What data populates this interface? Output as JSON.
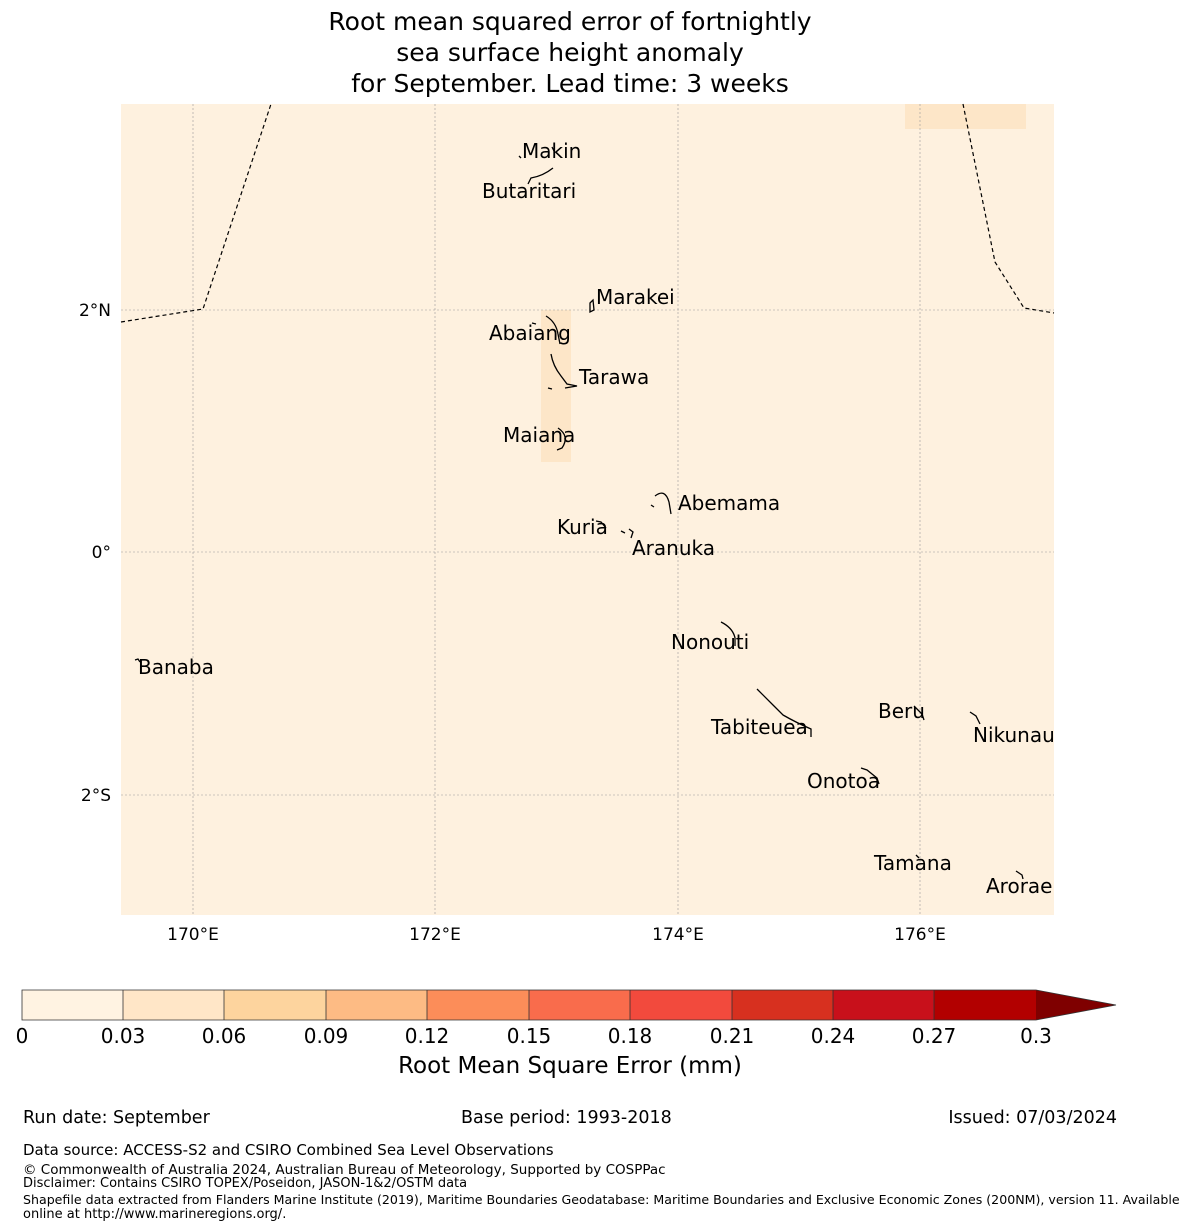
{
  "title": {
    "line1": "Root mean squared error of fortnightly",
    "line2": "sea surface height anomaly",
    "line3": "for September. Lead time: 3 weeks"
  },
  "map": {
    "lon_range": [
      169.4,
      177.1
    ],
    "lat_range": [
      -3.0,
      3.7
    ],
    "x_ticks": [
      "170°E",
      "172°E",
      "174°E",
      "176°E"
    ],
    "y_ticks": [
      "2°N",
      "0°",
      "2°S"
    ],
    "colors": {
      "background": "#fef1df",
      "patch": "#fde6c8",
      "grid": "#999999",
      "coast": "#000000"
    },
    "islands": [
      {
        "name": "Makin",
        "lon": 173.0,
        "lat": 3.3
      },
      {
        "name": "Butaritari",
        "lon": 172.8,
        "lat": 3.0
      },
      {
        "name": "Marakei",
        "lon": 173.3,
        "lat": 2.0
      },
      {
        "name": "Abaiang",
        "lon": 172.9,
        "lat": 1.8
      },
      {
        "name": "Tarawa",
        "lon": 173.0,
        "lat": 1.4
      },
      {
        "name": "Maiana",
        "lon": 173.0,
        "lat": 0.9
      },
      {
        "name": "Abemama",
        "lon": 173.9,
        "lat": 0.4
      },
      {
        "name": "Kuria",
        "lon": 173.4,
        "lat": 0.2
      },
      {
        "name": "Aranuka",
        "lon": 173.6,
        "lat": 0.2
      },
      {
        "name": "Nonouti",
        "lon": 174.4,
        "lat": -0.7
      },
      {
        "name": "Banaba",
        "lon": 169.5,
        "lat": -0.9
      },
      {
        "name": "Tabiteuea",
        "lon": 174.9,
        "lat": -1.4
      },
      {
        "name": "Beru",
        "lon": 176.0,
        "lat": -1.3
      },
      {
        "name": "Nikunau",
        "lon": 176.4,
        "lat": -1.4
      },
      {
        "name": "Onotoa",
        "lon": 175.6,
        "lat": -1.8
      },
      {
        "name": "Tamana",
        "lon": 176.0,
        "lat": -2.5
      },
      {
        "name": "Arorae",
        "lon": 176.8,
        "lat": -2.6
      }
    ]
  },
  "colorbar": {
    "label": "Root Mean Square Error (mm)",
    "ticks": [
      "0",
      "0.03",
      "0.06",
      "0.09",
      "0.12",
      "0.15",
      "0.18",
      "0.21",
      "0.24",
      "0.27",
      "0.3"
    ],
    "colors": [
      "#fff3e2",
      "#ffe6c7",
      "#fdd49e",
      "#fdbb84",
      "#fc8d59",
      "#f96c4c",
      "#f24a3d",
      "#d7301f",
      "#c8101b",
      "#b20000"
    ],
    "extend_color": "#7f0000"
  },
  "footer": {
    "run_date": "Run date: September",
    "base_period": "Base period: 1993-2018",
    "issued": "Issued: 07/03/2024",
    "data_source": "Data source: ACCESS-S2 and CSIRO Combined Sea Level Observations",
    "copyright": "© Commonwealth of Australia 2024, Australian Bureau of Meteorology, Supported by COSPPac",
    "disclaimer": "Disclaimer: Contains CSIRO TOPEX/Poseidon, JASON-1&2/OSTM data",
    "shapefile_1": "Shapefile data extracted from Flanders Marine Institute (2019), Maritime Boundaries Geodatabase: Maritime Boundaries and Exclusive Economic Zones (200NM), version 11. Available",
    "shapefile_2": "online at http://www.marineregions.org/."
  }
}
